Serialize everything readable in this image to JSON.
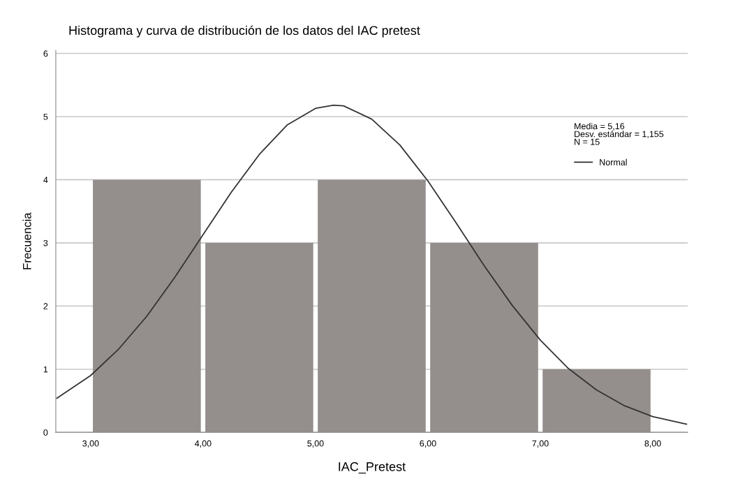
{
  "chart_data": {
    "type": "histogram",
    "title": "Histograma y curva de distribución de los datos del IAC pretest",
    "xlabel": "IAC_Pretest",
    "ylabel": "Frecuencia",
    "bins": [
      3,
      4,
      5,
      6,
      7,
      8
    ],
    "values": [
      4,
      3,
      4,
      3,
      1
    ],
    "color": "#948f8d",
    "series": [
      {
        "name": "Normal",
        "type": "line",
        "color": "#333333",
        "x": [
          2.7,
          3.0,
          3.25,
          3.5,
          3.75,
          4.0,
          4.25,
          4.5,
          4.75,
          5.0,
          5.16,
          5.25,
          5.5,
          5.75,
          6.0,
          6.25,
          6.5,
          6.75,
          7.0,
          7.25,
          7.5,
          7.75,
          8.0,
          8.3
        ],
        "values": [
          0.54,
          0.9,
          1.32,
          1.84,
          2.46,
          3.13,
          3.8,
          4.4,
          4.87,
          5.13,
          5.18,
          5.17,
          4.96,
          4.55,
          3.98,
          3.32,
          2.64,
          2.01,
          1.46,
          1.01,
          0.67,
          0.42,
          0.25,
          0.13
        ]
      }
    ],
    "xlim": [
      2.69,
      8.31
    ],
    "ylim": [
      0,
      6.05
    ],
    "xticks": [
      {
        "value": 3,
        "label": "3,00"
      },
      {
        "value": 4,
        "label": "4,00"
      },
      {
        "value": 5,
        "label": "5,00"
      },
      {
        "value": 6,
        "label": "6,00"
      },
      {
        "value": 7,
        "label": "7,00"
      },
      {
        "value": 8,
        "label": "8,00"
      }
    ],
    "yticks": [
      0,
      1,
      2,
      3,
      4,
      5,
      6
    ],
    "grid": "y",
    "legend": "right",
    "annotations": [
      "Media = 5,16\nDesv. estándar = 1,155\nN = 15"
    ]
  }
}
